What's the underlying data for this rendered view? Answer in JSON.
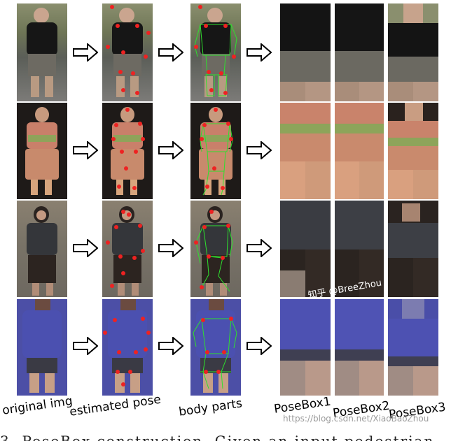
{
  "labels": {
    "original": "original img",
    "estimated": "estimated pose",
    "body": "body parts",
    "posebox1": "PoseBox1",
    "posebox2": "PoseBox2",
    "posebox3": "PoseBox3"
  },
  "watermark": {
    "brand": "知乎 @BreeZhou",
    "url": "https://blog.csdn.net/XiaoBaoZhou"
  },
  "bottom_caption": "3. PoseBox construction. Given an input pedestrian"
}
